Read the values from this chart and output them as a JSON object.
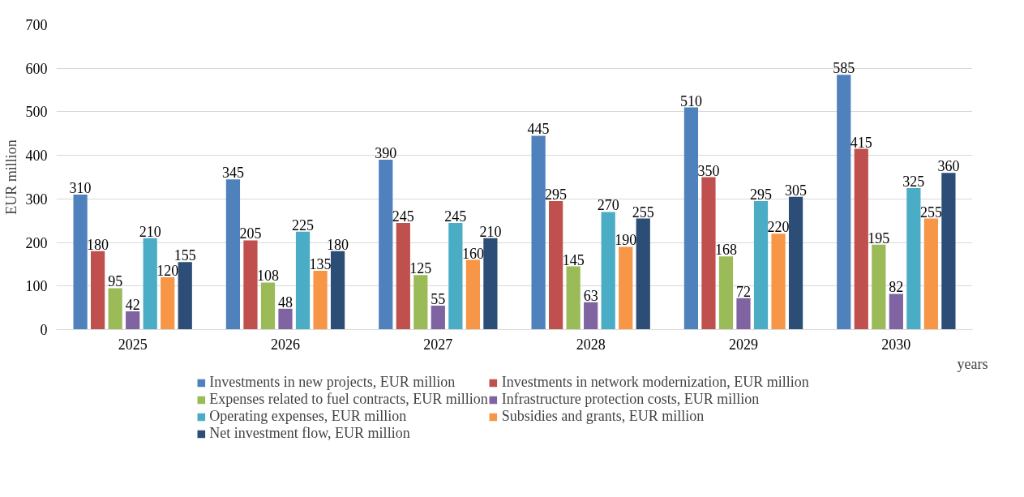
{
  "chart_data": {
    "type": "bar",
    "ylabel": "EUR million",
    "xlabel": "years",
    "categories": [
      "2025",
      "2026",
      "2027",
      "2028",
      "2029",
      "2030"
    ],
    "series": [
      {
        "name": "Investments in new projects, EUR million",
        "color": "#4f81bd",
        "values": [
          310,
          345,
          390,
          445,
          510,
          585
        ]
      },
      {
        "name": "Investments in network modernization, EUR million",
        "color": "#c0504d",
        "values": [
          180,
          205,
          245,
          295,
          350,
          415
        ]
      },
      {
        "name": "Expenses related to fuel contracts, EUR million",
        "color": "#9bbb59",
        "values": [
          95,
          108,
          125,
          145,
          168,
          195
        ]
      },
      {
        "name": "Infrastructure protection costs, EUR million",
        "color": "#8064a2",
        "values": [
          42,
          48,
          55,
          63,
          72,
          82
        ]
      },
      {
        "name": "Operating expenses, EUR million",
        "color": "#4bacc6",
        "values": [
          210,
          225,
          245,
          270,
          295,
          325
        ]
      },
      {
        "name": "Subsidies and grants, EUR million",
        "color": "#f79646",
        "values": [
          120,
          135,
          160,
          190,
          220,
          255
        ]
      },
      {
        "name": "Net investment flow, EUR million",
        "color": "#2c4d75",
        "values": [
          155,
          180,
          210,
          255,
          305,
          360
        ]
      }
    ],
    "ylim": [
      0,
      700
    ],
    "yticks": [
      0,
      100,
      200,
      300,
      400,
      500,
      600,
      700
    ],
    "grid": "y",
    "legend": "bottom",
    "data_labels": true
  }
}
